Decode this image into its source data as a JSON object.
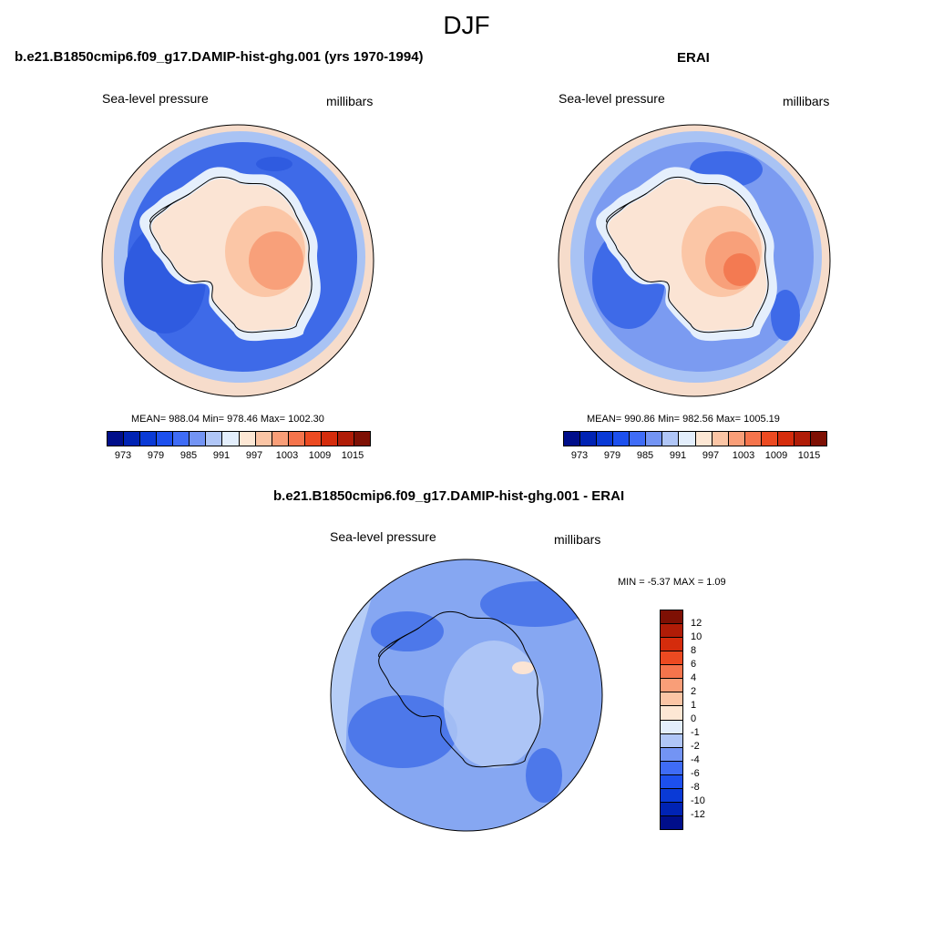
{
  "figure": {
    "title": "DJF",
    "panels": [
      {
        "title": "b.e21.B1850cmip6.f09_g17.DAMIP-hist-ghg.001 (yrs 1970-1994)",
        "left_label": "Sea-level pressure",
        "right_label": "millibars",
        "stats": "MEAN= 988.04  Min= 978.46  Max= 1002.30"
      },
      {
        "title": "ERAI",
        "left_label": "Sea-level pressure",
        "right_label": "millibars",
        "stats": "MEAN= 990.86  Min= 982.56  Max= 1005.19"
      },
      {
        "title": "b.e21.B1850cmip6.f09_g17.DAMIP-hist-ghg.001 - ERAI",
        "left_label": "Sea-level pressure",
        "right_label": "millibars",
        "stats": "MIN =  -5.37 MAX =   1.09"
      }
    ]
  },
  "colorbar_abs": {
    "tick_labels": [
      "973",
      "979",
      "985",
      "991",
      "997",
      "1003",
      "1009",
      "1015"
    ],
    "colors": [
      "#000e8a",
      "#0023b4",
      "#0a3ad6",
      "#1d50ee",
      "#3f6cf6",
      "#7394f4",
      "#b0c6f7",
      "#e3eefc",
      "#fde7d4",
      "#fbc5a5",
      "#f99e78",
      "#f5744c",
      "#ec4a21",
      "#d52c0c",
      "#b01c07",
      "#7e1004"
    ]
  },
  "colorbar_diff": {
    "tick_labels": [
      "12",
      "10",
      "8",
      "6",
      "4",
      "2",
      "1",
      "0",
      "-1",
      "-2",
      "-4",
      "-6",
      "-8",
      "-10",
      "-12"
    ],
    "colors": [
      "#7e1004",
      "#b01c07",
      "#d52c0c",
      "#ec4a21",
      "#f5744c",
      "#f99e78",
      "#fbc5a5",
      "#fde7d4",
      "#e3eefc",
      "#b0c6f7",
      "#7394f4",
      "#3f6cf6",
      "#1d50ee",
      "#0a3ad6",
      "#0023b4",
      "#000e8a"
    ]
  },
  "map_colors": {
    "ocean_outer": "#f6dccb",
    "ring_light": "#a9c3f4",
    "ring_mid": "#7b9bf1",
    "trough": "#3e6ae8",
    "coast_light": "#e5effc",
    "coast_blue": "#b4cbf6",
    "land_warm1": "#fbe4d4",
    "land_warm2": "#fbc6a6",
    "land_warm3": "#f8a07a",
    "land_warm4": "#f37a52",
    "diff_base": "#86a7f2",
    "diff_light": "#b6cdf6",
    "diff_dark": "#4d78ea"
  }
}
